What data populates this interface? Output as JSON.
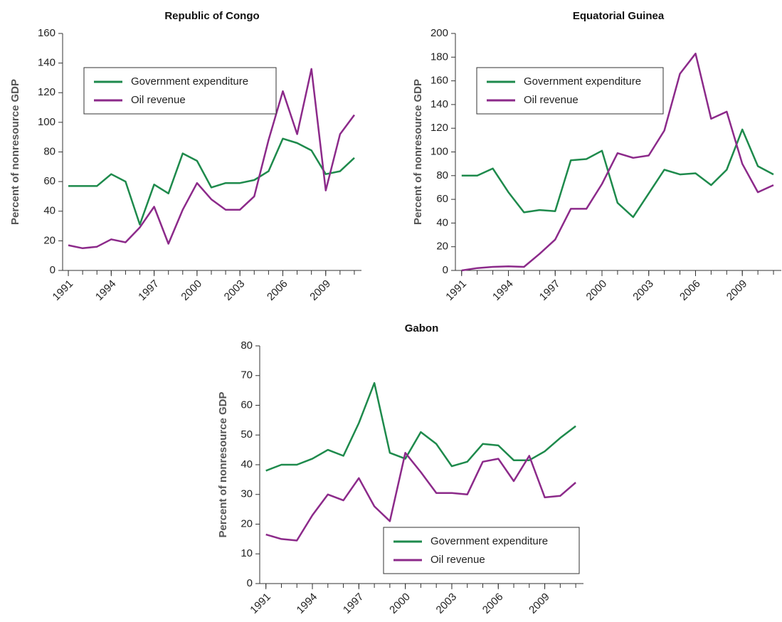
{
  "chart_data": [
    {
      "type": "line",
      "title": "Republic of Congo",
      "y_label": "Percent of nonresource GDP",
      "x": [
        1991,
        1992,
        1993,
        1994,
        1995,
        1996,
        1997,
        1998,
        1999,
        2000,
        2001,
        2002,
        2003,
        2004,
        2005,
        2006,
        2007,
        2008,
        2009,
        2010,
        2011
      ],
      "xlim": [
        1990.6,
        2011.5
      ],
      "xticks": [
        1991,
        1994,
        1997,
        2000,
        2003,
        2006,
        2009
      ],
      "ylim": [
        0,
        160
      ],
      "yticks": [
        0,
        20,
        40,
        60,
        80,
        100,
        120,
        140,
        160
      ],
      "legend": "upper left",
      "series": [
        {
          "name": "Government expenditure",
          "color": "#1e8a4c",
          "values": [
            57,
            57,
            57,
            65,
            60,
            31,
            58,
            52,
            79,
            74,
            56,
            59,
            59,
            61,
            67,
            89,
            86,
            81,
            65,
            67,
            76
          ]
        },
        {
          "name": "Oil revenue",
          "color": "#8c2a8a",
          "values": [
            17,
            15,
            16,
            21,
            19,
            29,
            43,
            18,
            41,
            59,
            48,
            41,
            41,
            50,
            88,
            121,
            92,
            136,
            54,
            92,
            105
          ]
        }
      ]
    },
    {
      "type": "line",
      "title": "Equatorial Guinea",
      "y_label": "Percent of nonresource GDP",
      "x": [
        1991,
        1992,
        1993,
        1994,
        1995,
        1996,
        1997,
        1998,
        1999,
        2000,
        2001,
        2002,
        2003,
        2004,
        2005,
        2006,
        2007,
        2008,
        2009,
        2010,
        2011
      ],
      "xlim": [
        1990.6,
        2011.5
      ],
      "xticks": [
        1991,
        1994,
        1997,
        2000,
        2003,
        2006,
        2009
      ],
      "ylim": [
        0,
        200
      ],
      "yticks": [
        0,
        20,
        40,
        60,
        80,
        100,
        120,
        140,
        160,
        180,
        200
      ],
      "legend": "upper left",
      "series": [
        {
          "name": "Government expenditure",
          "color": "#1e8a4c",
          "values": [
            80,
            80,
            86,
            66,
            49,
            51,
            50,
            93,
            94,
            101,
            57,
            45,
            65,
            85,
            81,
            82,
            72,
            85,
            119,
            88,
            81
          ]
        },
        {
          "name": "Oil revenue",
          "color": "#8c2a8a",
          "values": [
            0,
            2,
            3,
            3.5,
            3,
            14,
            26,
            52,
            52,
            73,
            99,
            95,
            97,
            118,
            166,
            183,
            128,
            134,
            90,
            66,
            72
          ]
        }
      ]
    },
    {
      "type": "line",
      "title": "Gabon",
      "y_label": "Percent of nonresource GDP",
      "x": [
        1991,
        1992,
        1993,
        1994,
        1995,
        1996,
        1997,
        1998,
        1999,
        2000,
        2001,
        2002,
        2003,
        2004,
        2005,
        2006,
        2007,
        2008,
        2009,
        2010,
        2011
      ],
      "xlim": [
        1990.6,
        2011.5
      ],
      "xticks": [
        1991,
        1994,
        1997,
        2000,
        2003,
        2006,
        2009
      ],
      "ylim": [
        0,
        80
      ],
      "yticks": [
        0,
        10,
        20,
        30,
        40,
        50,
        60,
        70,
        80
      ],
      "legend": "lower right",
      "series": [
        {
          "name": "Government expenditure",
          "color": "#1e8a4c",
          "values": [
            38,
            40,
            40,
            42,
            45,
            43,
            54,
            67.5,
            44,
            42,
            51,
            47,
            39.5,
            41,
            47,
            46.5,
            41.5,
            41.5,
            44.5,
            49,
            53
          ]
        },
        {
          "name": "Oil revenue",
          "color": "#8c2a8a",
          "values": [
            16.5,
            15,
            14.5,
            23,
            30,
            28,
            35.5,
            26,
            21,
            44,
            37.5,
            30.5,
            30.5,
            30,
            41,
            42,
            34.5,
            43,
            29,
            29.5,
            34
          ]
        }
      ]
    }
  ]
}
